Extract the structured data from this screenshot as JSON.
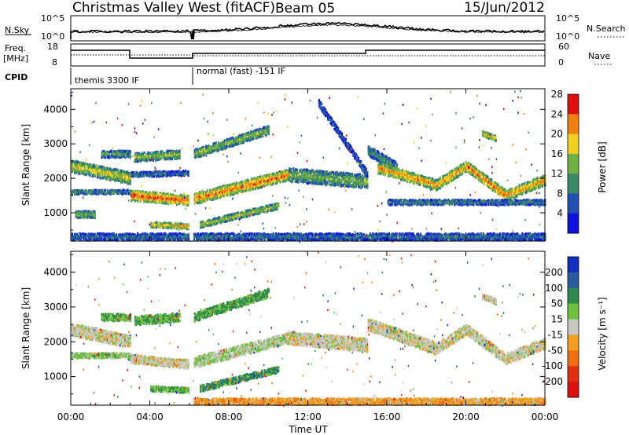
{
  "header": {
    "station": "Christmas Valley West (fitACF)",
    "beam": "Beam 05",
    "date": "15/Jun/2012"
  },
  "top_panels": {
    "nsky_label": "N.Sky",
    "nsky_ticks": [
      "10^5",
      "10^0"
    ],
    "nsearch_label": "N.Search",
    "nsearch_ticks": [
      "10^5",
      "10^0"
    ],
    "freq_label_line1": "Freq.",
    "freq_label_line2": "[MHz]",
    "freq_ticks": [
      "18",
      "8"
    ],
    "nave_label": "Nave",
    "nave_ticks": [
      "60",
      "0"
    ],
    "cpid_label": "CPID",
    "cpid_segments": [
      "themis 3300 IF",
      "normal (fast) -151 IF"
    ]
  },
  "chart_data": [
    {
      "type": "heatmap",
      "name": "power",
      "ylabel": "Slant Range [km]",
      "xlabel": "Time UT",
      "x_ticks": [
        "00:00",
        "04:00",
        "08:00",
        "12:00",
        "16:00",
        "20:00",
        "00:00"
      ],
      "y_ticks": [
        1000,
        2000,
        3000,
        4000
      ],
      "x_range_hours": [
        0,
        24
      ],
      "y_range_km": [
        180,
        4600
      ],
      "colorbar_label": "Power [dB]",
      "colorbar_ticks": [
        4,
        8,
        12,
        16,
        20,
        24,
        28
      ],
      "colorbar_colors": [
        "#1010e0",
        "#2050b0",
        "#3a8a6a",
        "#70b040",
        "#f0d020",
        "#f08010",
        "#e01010"
      ],
      "bands": [
        {
          "t0": 0.0,
          "t1": 3.0,
          "r0": 2350,
          "r1": 2000,
          "w": 350,
          "level": 0.65
        },
        {
          "t0": 0.0,
          "t1": 3.0,
          "r0": 1600,
          "r1": 1600,
          "w": 120,
          "level": 0.4
        },
        {
          "t0": 0.2,
          "t1": 1.2,
          "r0": 950,
          "r1": 950,
          "w": 200,
          "level": 0.55
        },
        {
          "t0": 1.5,
          "t1": 3.0,
          "r0": 2700,
          "r1": 2700,
          "w": 200,
          "level": 0.45
        },
        {
          "t0": 3.0,
          "t1": 6.0,
          "r0": 1500,
          "r1": 1350,
          "w": 300,
          "level": 0.9
        },
        {
          "t0": 3.0,
          "t1": 6.0,
          "r0": 2100,
          "r1": 2150,
          "w": 150,
          "level": 0.3
        },
        {
          "t0": 3.2,
          "t1": 5.5,
          "r0": 2600,
          "r1": 2700,
          "w": 250,
          "level": 0.55
        },
        {
          "t0": 4.0,
          "t1": 6.0,
          "r0": 650,
          "r1": 600,
          "w": 150,
          "level": 0.75
        },
        {
          "t0": 6.2,
          "t1": 11.0,
          "r0": 1400,
          "r1": 2100,
          "w": 320,
          "level": 0.85
        },
        {
          "t0": 6.2,
          "t1": 10.0,
          "r0": 2700,
          "r1": 3400,
          "w": 250,
          "level": 0.55
        },
        {
          "t0": 6.5,
          "t1": 10.5,
          "r0": 650,
          "r1": 1200,
          "w": 180,
          "level": 0.6
        },
        {
          "t0": 11.0,
          "t1": 15.0,
          "r0": 2100,
          "r1": 1900,
          "w": 400,
          "level": 0.5
        },
        {
          "t0": 12.5,
          "t1": 15.0,
          "r0": 4200,
          "r1": 2100,
          "w": 200,
          "level": 0.25
        },
        {
          "t0": 15.0,
          "t1": 16.5,
          "r0": 2800,
          "r1": 2300,
          "w": 300,
          "level": 0.4
        },
        {
          "t0": 15.5,
          "t1": 18.5,
          "r0": 2300,
          "r1": 1800,
          "w": 300,
          "level": 0.8
        },
        {
          "t0": 18.5,
          "t1": 20.0,
          "r0": 1800,
          "r1": 2350,
          "w": 300,
          "level": 0.8
        },
        {
          "t0": 20.0,
          "t1": 22.0,
          "r0": 2350,
          "r1": 1500,
          "w": 300,
          "level": 0.85
        },
        {
          "t0": 22.0,
          "t1": 24.0,
          "r0": 1500,
          "r1": 1950,
          "w": 300,
          "level": 0.8
        },
        {
          "t0": 16.0,
          "t1": 24.0,
          "r0": 1300,
          "r1": 1300,
          "w": 150,
          "level": 0.35
        },
        {
          "t0": 20.8,
          "t1": 21.5,
          "r0": 3300,
          "r1": 3150,
          "w": 150,
          "level": 0.7
        },
        {
          "t0": 0.0,
          "t1": 24.0,
          "r0": 300,
          "r1": 300,
          "w": 200,
          "level": 0.3
        }
      ]
    },
    {
      "type": "heatmap",
      "name": "velocity",
      "ylabel": "Slant Range [km]",
      "xlabel": "Time UT",
      "x_ticks": [
        "00:00",
        "04:00",
        "08:00",
        "12:00",
        "16:00",
        "20:00",
        "00:00"
      ],
      "y_ticks": [
        1000,
        2000,
        3000,
        4000
      ],
      "x_range_hours": [
        0,
        24
      ],
      "y_range_km": [
        180,
        4600
      ],
      "colorbar_label": "Velocity [m s⁻¹]",
      "colorbar_ticks": [
        200,
        100,
        50,
        15,
        -15,
        -50,
        -100,
        -200
      ],
      "colorbar_colors": [
        "#1030c0",
        "#2a5aa0",
        "#2e8a4a",
        "#70c040",
        "#c8c8c0",
        "#f0a020",
        "#f07010",
        "#e03010",
        "#e01010"
      ],
      "bands": [
        {
          "t0": 0.0,
          "t1": 3.0,
          "r0": 2350,
          "r1": 2000,
          "w": 350,
          "level": 0.5
        },
        {
          "t0": 0.0,
          "t1": 3.0,
          "r0": 1600,
          "r1": 1600,
          "w": 150,
          "level": 0.6
        },
        {
          "t0": 1.5,
          "t1": 3.0,
          "r0": 2700,
          "r1": 2700,
          "w": 200,
          "level": 0.65
        },
        {
          "t0": 3.0,
          "t1": 6.0,
          "r0": 1500,
          "r1": 1350,
          "w": 250,
          "level": 0.5
        },
        {
          "t0": 3.2,
          "t1": 5.5,
          "r0": 2600,
          "r1": 2700,
          "w": 250,
          "level": 0.65
        },
        {
          "t0": 4.0,
          "t1": 6.0,
          "r0": 650,
          "r1": 600,
          "w": 150,
          "level": 0.65
        },
        {
          "t0": 6.2,
          "t1": 11.0,
          "r0": 1400,
          "r1": 2100,
          "w": 300,
          "level": 0.55
        },
        {
          "t0": 6.2,
          "t1": 10.0,
          "r0": 2700,
          "r1": 3400,
          "w": 250,
          "level": 0.68
        },
        {
          "t0": 6.5,
          "t1": 10.5,
          "r0": 650,
          "r1": 1200,
          "w": 180,
          "level": 0.72
        },
        {
          "t0": 11.0,
          "t1": 15.0,
          "r0": 2100,
          "r1": 1900,
          "w": 380,
          "level": 0.5
        },
        {
          "t0": 15.0,
          "t1": 18.5,
          "r0": 2500,
          "r1": 1800,
          "w": 350,
          "level": 0.5
        },
        {
          "t0": 18.5,
          "t1": 20.0,
          "r0": 1800,
          "r1": 2350,
          "w": 300,
          "level": 0.5
        },
        {
          "t0": 20.0,
          "t1": 22.0,
          "r0": 2350,
          "r1": 1500,
          "w": 300,
          "level": 0.5
        },
        {
          "t0": 22.0,
          "t1": 24.0,
          "r0": 1500,
          "r1": 1950,
          "w": 300,
          "level": 0.5
        },
        {
          "t0": 20.8,
          "t1": 21.5,
          "r0": 3300,
          "r1": 3150,
          "w": 150,
          "level": 0.5
        },
        {
          "t0": 6.0,
          "t1": 24.0,
          "r0": 280,
          "r1": 280,
          "w": 180,
          "level": 0.38
        }
      ]
    }
  ]
}
